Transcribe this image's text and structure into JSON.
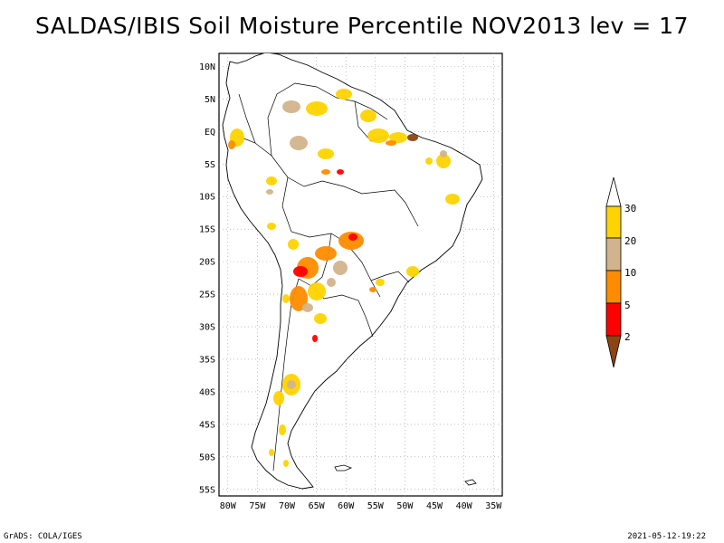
{
  "title": "SALDAS/IBIS Soil Moisture Percentile NOV2013 lev = 17",
  "map": {
    "region": "South America",
    "lat_labels": [
      "10N",
      "5N",
      "EQ",
      "5S",
      "10S",
      "15S",
      "20S",
      "25S",
      "30S",
      "35S",
      "40S",
      "45S",
      "50S",
      "55S"
    ],
    "lat_values": [
      10,
      5,
      0,
      -5,
      -10,
      -15,
      -20,
      -25,
      -30,
      -35,
      -40,
      -45,
      -50,
      -55
    ],
    "lon_labels": [
      "80W",
      "75W",
      "70W",
      "65W",
      "60W",
      "55W",
      "50W",
      "45W",
      "40W",
      "35W"
    ],
    "lon_values": [
      -80,
      -75,
      -70,
      -65,
      -60,
      -55,
      -50,
      -45,
      -40,
      -35
    ],
    "lon_range": [
      -81.5,
      -33.5
    ],
    "lat_range": [
      -56,
      12
    ]
  },
  "legend": {
    "labels": [
      "30",
      "20",
      "10",
      "5",
      "2"
    ],
    "colors": {
      "above30": "#ffffff",
      "c20_30": "#ffd300",
      "c10_20": "#d2b48c",
      "c5_10": "#ff8c00",
      "c2_5": "#ff0000",
      "below2": "#8b4513"
    }
  },
  "footer": {
    "credit": "GrADS: COLA/IGES",
    "timestamp": "2021-05-12-19:22"
  }
}
